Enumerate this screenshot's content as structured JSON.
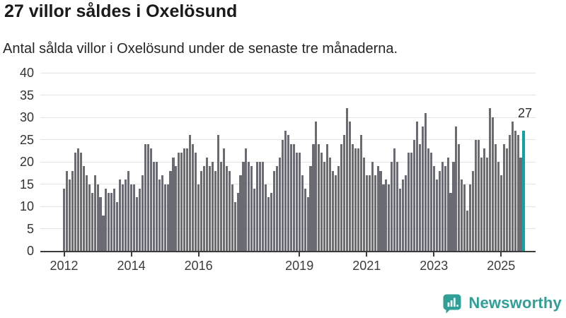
{
  "header": {
    "title": "27 villor såldes i Oxelösund",
    "subtitle": "Antal sålda villor i Oxelösund under de senaste tre månaderna."
  },
  "chart_data": {
    "type": "bar",
    "title": "27 villor såldes i Oxelösund",
    "xlabel": "",
    "ylabel": "",
    "x_start": "2012-01",
    "frequency": "monthly",
    "values": [
      14,
      18,
      16,
      18,
      22,
      23,
      22,
      19,
      17,
      15,
      13,
      17,
      15,
      12,
      8,
      14,
      13,
      13,
      14,
      11,
      16,
      15,
      16,
      18,
      15,
      15,
      12,
      14,
      17,
      24,
      24,
      23,
      20,
      20,
      16,
      17,
      15,
      15,
      18,
      21,
      19,
      22,
      22,
      23,
      23,
      26,
      24,
      22,
      15,
      18,
      19,
      21,
      19,
      20,
      18,
      26,
      20,
      23,
      19,
      18,
      15,
      11,
      13,
      17,
      20,
      23,
      20,
      19,
      14,
      20,
      20,
      20,
      15,
      12,
      13,
      18,
      19,
      21,
      25,
      27,
      26,
      24,
      24,
      22,
      22,
      17,
      14,
      12,
      19,
      24,
      29,
      24,
      22,
      20,
      24,
      21,
      18,
      17,
      19,
      24,
      26,
      32,
      29,
      24,
      23,
      23,
      26,
      21,
      17,
      17,
      20,
      17,
      19,
      18,
      15,
      16,
      15,
      20,
      23,
      20,
      14,
      16,
      17,
      22,
      22,
      25,
      29,
      24,
      28,
      31,
      23,
      22,
      19,
      16,
      18,
      20,
      19,
      21,
      13,
      20,
      28,
      24,
      16,
      15,
      9,
      15,
      18,
      25,
      25,
      21,
      23,
      21,
      32,
      30,
      24,
      20,
      17,
      24,
      23,
      26,
      29,
      27,
      26,
      21,
      27
    ],
    "highlight": {
      "index": 164,
      "value": 27,
      "label": "27"
    },
    "yticks": [
      0,
      5,
      10,
      15,
      20,
      25,
      30,
      35,
      40
    ],
    "ylim": [
      0,
      40
    ],
    "xticks": [
      {
        "label": "2012",
        "month_index": 0
      },
      {
        "label": "2014",
        "month_index": 24
      },
      {
        "label": "2016",
        "month_index": 48
      },
      {
        "label": "2019",
        "month_index": 84
      },
      {
        "label": "2021",
        "month_index": 108
      },
      {
        "label": "2023",
        "month_index": 132
      },
      {
        "label": "2025",
        "month_index": 156
      }
    ],
    "grid": true,
    "legend": false,
    "colors": {
      "bar": "#6b6b74",
      "highlight_bar": "#12a2a2",
      "gridline": "#e3e3e3",
      "axis": "#3c3c3c",
      "tick_label": "#3c3c3c"
    }
  },
  "footer": {
    "brand": "Newsworthy",
    "brand_color": "#2f9f97",
    "icon": "bar-chart-speech-bubble-icon"
  }
}
